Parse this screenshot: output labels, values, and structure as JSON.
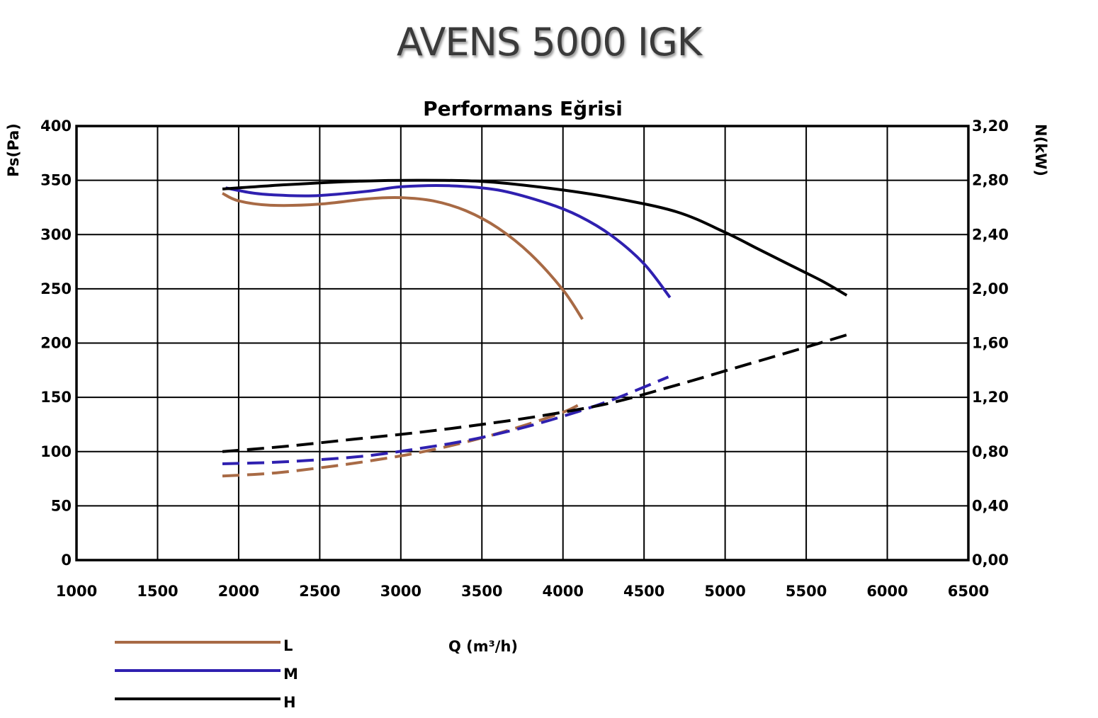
{
  "title": "AVENS 5000 IGK",
  "chart_data": {
    "type": "line",
    "title": "Performans Eğrisi",
    "xlabel": "Q (m³/h)",
    "ylabel": "Ps(Pa)",
    "y2label": "N(kW)",
    "xlim": [
      1000,
      6500
    ],
    "ylim": [
      0,
      400
    ],
    "y2lim": [
      0,
      3.2
    ],
    "xticks": [
      "1000",
      "1500",
      "2000",
      "2500",
      "3000",
      "3500",
      "4000",
      "4500",
      "5000",
      "5500",
      "6000",
      "6500"
    ],
    "yticks": [
      "0",
      "50",
      "100",
      "150",
      "200",
      "250",
      "300",
      "350",
      "400"
    ],
    "y2ticks": [
      "0,00",
      "0,40",
      "0,80",
      "1,20",
      "1,60",
      "2,00",
      "2,40",
      "2,80",
      "3,20"
    ],
    "grid": true,
    "legend_position": "bottom-left",
    "colors": {
      "L": "#a86a45",
      "M": "#2f20b0",
      "H": "#000000"
    },
    "series": [
      {
        "name": "L",
        "axis": "left",
        "style": "solid",
        "x": [
          1900,
          2000,
          2200,
          2500,
          2800,
          3000,
          3200,
          3400,
          3600,
          3800,
          4000,
          4120
        ],
        "y": [
          338,
          331,
          327,
          328,
          333,
          334,
          331,
          322,
          306,
          282,
          249,
          222
        ]
      },
      {
        "name": "M",
        "axis": "left",
        "style": "solid",
        "x": [
          1920,
          2100,
          2300,
          2500,
          2800,
          3000,
          3300,
          3600,
          3900,
          4100,
          4300,
          4500,
          4660
        ],
        "y": [
          343,
          338,
          336,
          336,
          340,
          344,
          345,
          341,
          329,
          317,
          299,
          273,
          242
        ]
      },
      {
        "name": "H",
        "axis": "left",
        "style": "solid",
        "x": [
          1900,
          2300,
          2700,
          3100,
          3500,
          3900,
          4300,
          4700,
          5000,
          5200,
          5400,
          5600,
          5750
        ],
        "y": [
          342,
          346,
          349,
          350,
          349,
          343,
          334,
          321,
          302,
          287,
          272,
          257,
          244
        ]
      },
      {
        "name": "L",
        "axis": "right",
        "style": "dashed",
        "x": [
          1900,
          2200,
          2500,
          2800,
          3100,
          3400,
          3700,
          4000,
          4120
        ],
        "y": [
          0.62,
          0.64,
          0.68,
          0.73,
          0.79,
          0.87,
          0.97,
          1.09,
          1.16
        ]
      },
      {
        "name": "M",
        "axis": "right",
        "style": "dashed",
        "x": [
          1900,
          2200,
          2500,
          2800,
          3100,
          3400,
          3700,
          4000,
          4300,
          4650
        ],
        "y": [
          0.71,
          0.72,
          0.74,
          0.77,
          0.82,
          0.88,
          0.96,
          1.06,
          1.18,
          1.35
        ]
      },
      {
        "name": "H",
        "axis": "right",
        "style": "dashed",
        "x": [
          1900,
          2300,
          2700,
          3100,
          3500,
          3900,
          4300,
          4700,
          5100,
          5500,
          5750
        ],
        "y": [
          0.8,
          0.84,
          0.89,
          0.94,
          1.0,
          1.07,
          1.16,
          1.29,
          1.43,
          1.57,
          1.66
        ]
      }
    ]
  }
}
